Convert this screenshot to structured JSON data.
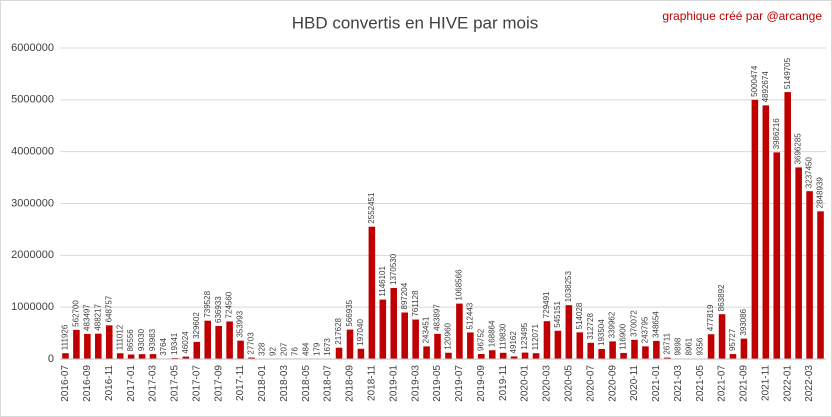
{
  "chart_data": {
    "type": "bar",
    "title": "HBD convertis en HIVE par mois",
    "annotation": "graphique créé par @arcange",
    "categories": [
      "2016-07",
      null,
      "2016-09",
      null,
      "2016-11",
      null,
      "2017-01",
      null,
      "2017-03",
      null,
      "2017-05",
      null,
      "2017-07",
      null,
      "2017-09",
      null,
      "2017-11",
      null,
      "2018-01",
      null,
      "2018-03",
      null,
      "2018-05",
      null,
      "2018-07",
      null,
      "2018-09",
      null,
      "2018-11",
      null,
      "2019-01",
      null,
      "2019-03",
      null,
      "2019-05",
      null,
      "2019-07",
      null,
      "2019-09",
      null,
      "2019-11",
      null,
      "2020-01",
      null,
      "2020-03",
      null,
      "2020-05",
      null,
      "2020-07",
      null,
      "2020-09",
      null,
      "2020-11",
      null,
      "2021-01",
      null,
      "2021-03",
      null,
      "2021-05",
      null,
      "2021-07",
      null,
      "2021-09",
      null,
      "2021-11",
      null,
      "2022-01",
      null,
      "2022-03",
      null
    ],
    "values": [
      111926,
      562700,
      483497,
      488217,
      648757,
      111012,
      86556,
      93030,
      93983,
      3764,
      19341,
      46024,
      329602,
      739528,
      636933,
      724560,
      353993,
      27703,
      328,
      92,
      207,
      76,
      484,
      179,
      1673,
      217628,
      566935,
      197040,
      2552451,
      1146101,
      1370530,
      897204,
      761128,
      243451,
      483897,
      120960,
      1068566,
      512443,
      96752,
      168864,
      119830,
      49162,
      123495,
      112071,
      729491,
      545151,
      1038253,
      514028,
      312728,
      193504,
      339962,
      116900,
      370072,
      243795,
      348654,
      26711,
      9898,
      8961,
      9356,
      477819,
      863892,
      95727,
      393086,
      5000474,
      4892674,
      3986216,
      5149705,
      3696285,
      3237450,
      2848939
    ],
    "color": "#c00000",
    "ylim": [
      0,
      6000000
    ],
    "yticks": [
      0,
      1000000,
      2000000,
      3000000,
      4000000,
      5000000,
      6000000
    ],
    "grid": true
  }
}
